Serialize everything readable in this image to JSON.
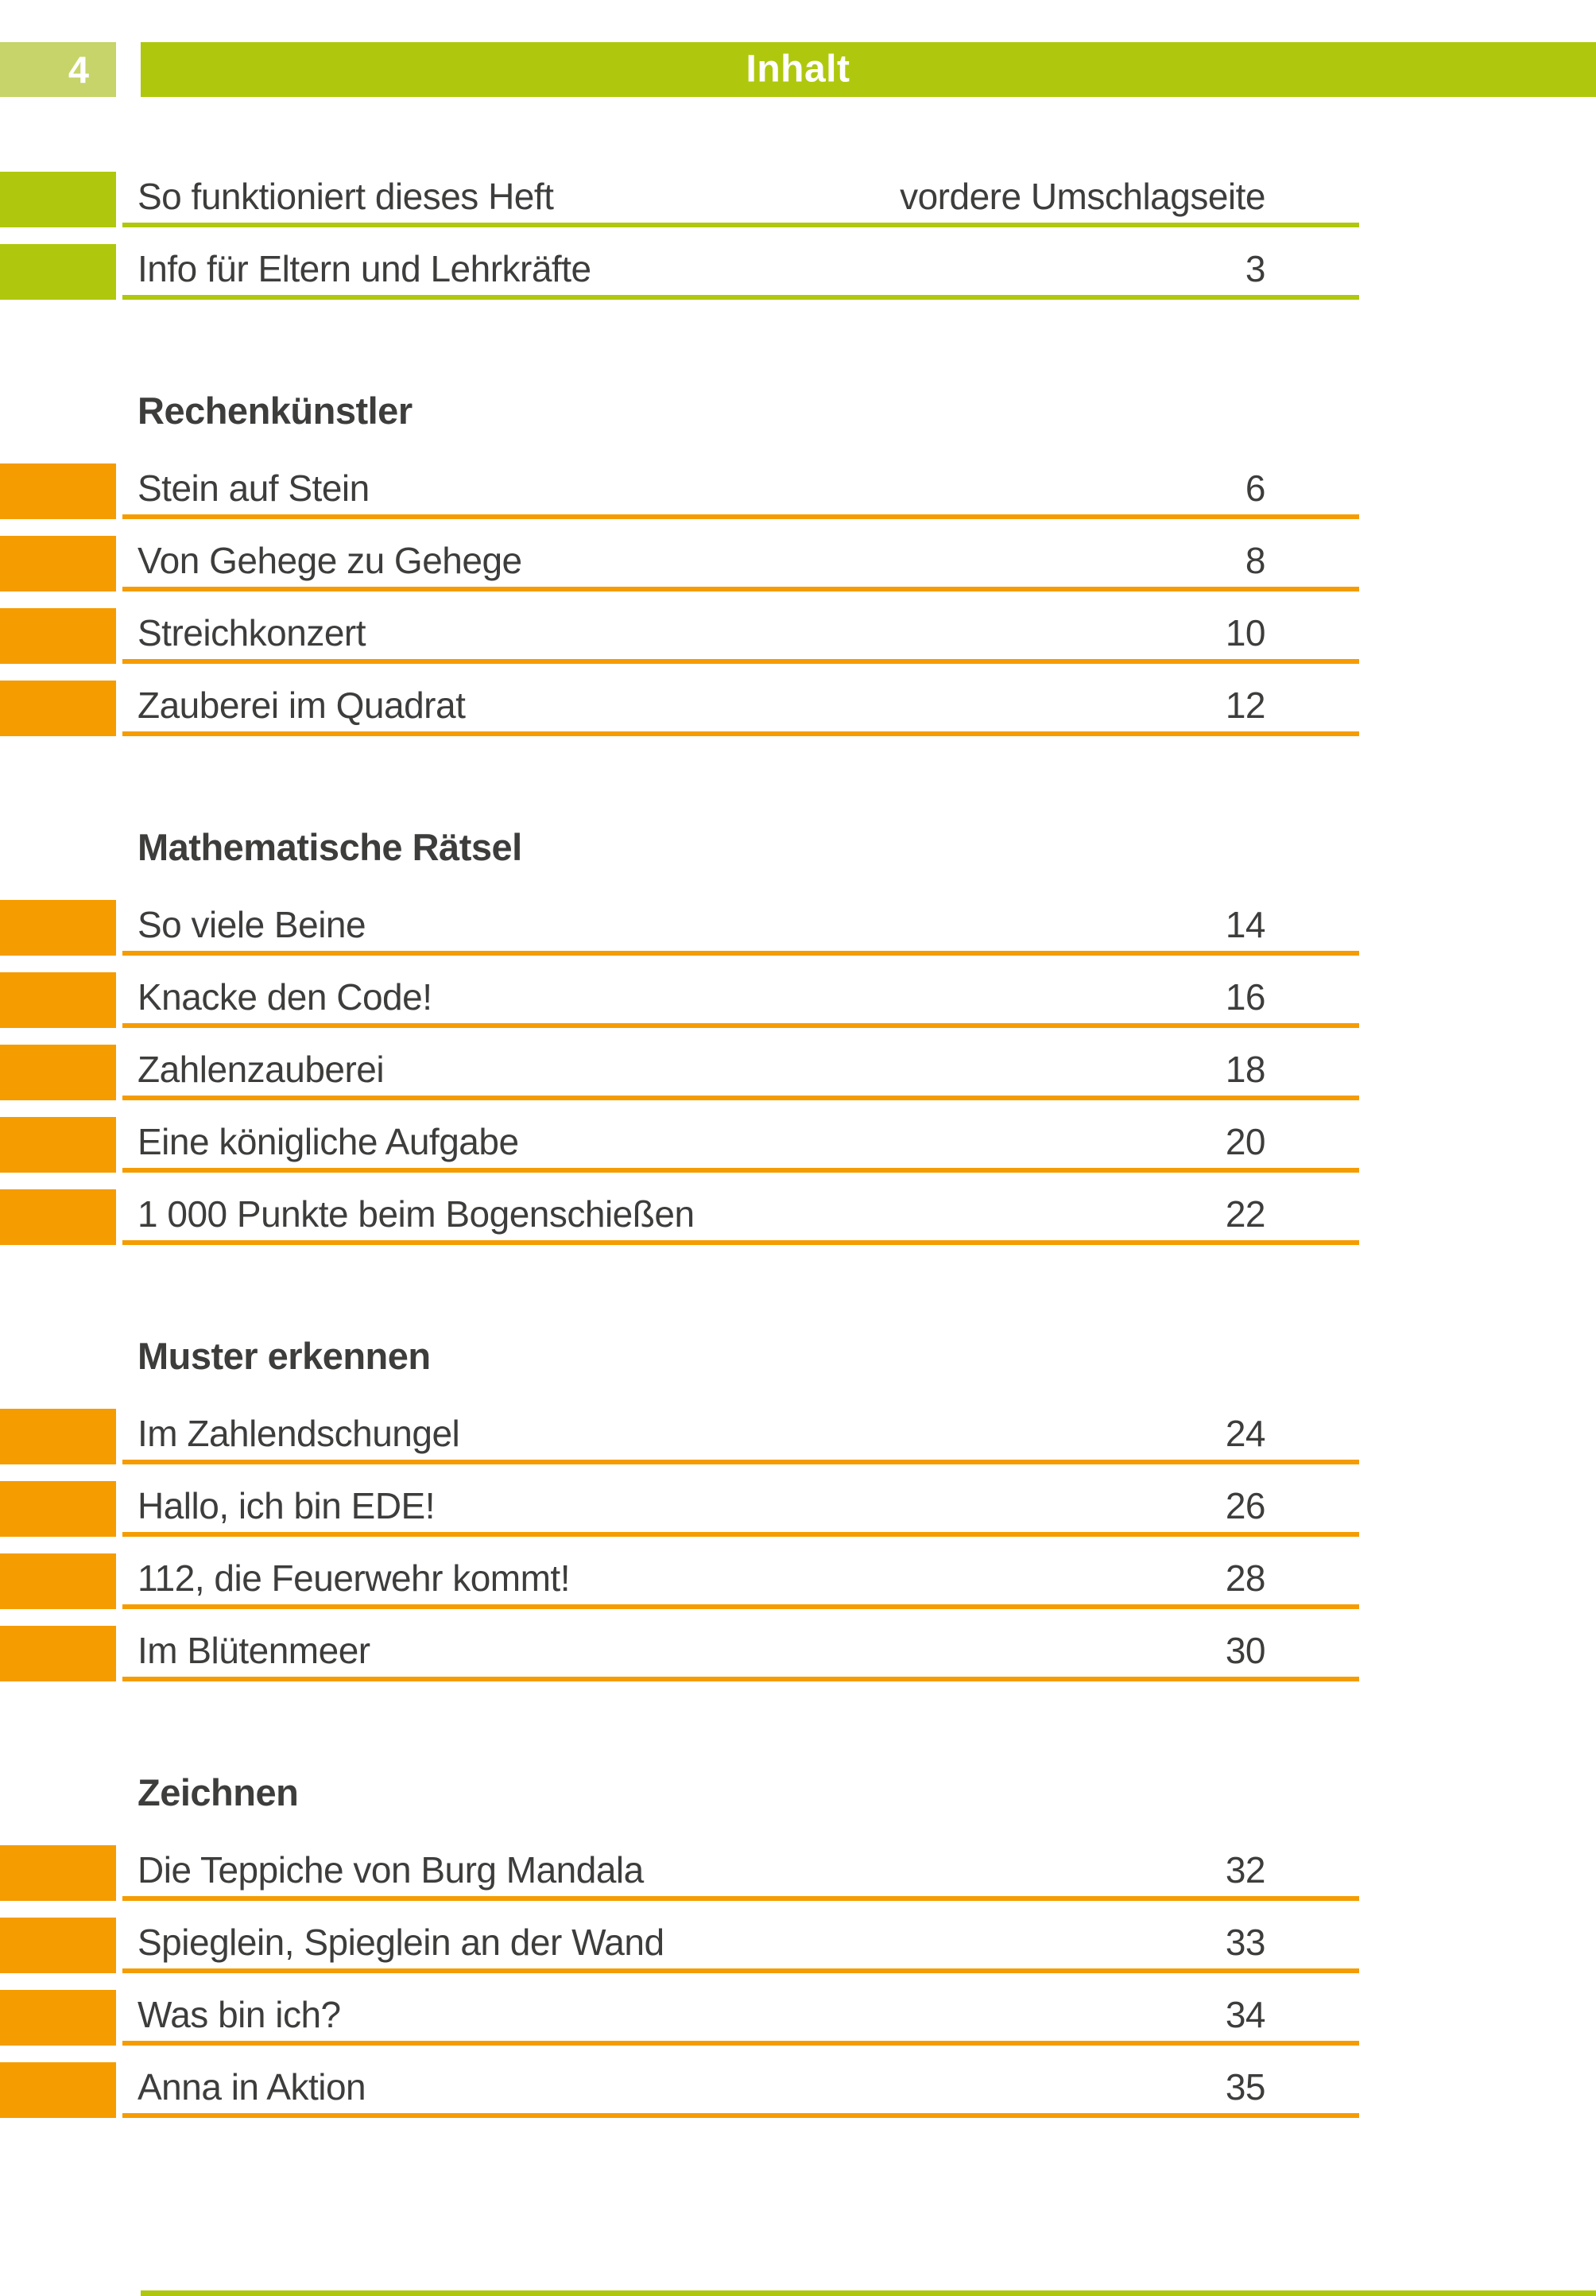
{
  "page": {
    "number": "4",
    "header_title": "Inhalt"
  },
  "colors": {
    "green": "#AFC80E",
    "light_green": "#C6D469",
    "orange": "#F59C00",
    "text": "#3D3D3C"
  },
  "toc": {
    "intro": [
      {
        "label": "So funktioniert dieses Heft",
        "page": "vordere Umschlagseite"
      },
      {
        "label": "Info für Eltern und Lehrkräfte",
        "page": "3"
      }
    ],
    "sections": [
      {
        "title": "Rechenkünstler",
        "rows": [
          {
            "label": "Stein auf Stein",
            "page": "6"
          },
          {
            "label": "Von Gehege zu Gehege",
            "page": "8"
          },
          {
            "label": "Streichkonzert",
            "page": "10"
          },
          {
            "label": "Zauberei im Quadrat",
            "page": "12"
          }
        ]
      },
      {
        "title": "Mathematische Rätsel",
        "rows": [
          {
            "label": "So viele Beine",
            "page": "14"
          },
          {
            "label": "Knacke den Code!",
            "page": "16"
          },
          {
            "label": "Zahlenzauberei",
            "page": "18"
          },
          {
            "label": "Eine königliche Aufgabe",
            "page": "20"
          },
          {
            "label": "1 000 Punkte beim Bogenschießen",
            "page": "22"
          }
        ]
      },
      {
        "title": "Muster erkennen",
        "rows": [
          {
            "label": "Im Zahlendschungel",
            "page": "24"
          },
          {
            "label": "Hallo, ich bin EDE!",
            "page": "26"
          },
          {
            "label": "112, die Feuerwehr kommt!",
            "page": "28"
          },
          {
            "label": "Im Blütenmeer",
            "page": "30"
          }
        ]
      },
      {
        "title": "Zeichnen",
        "rows": [
          {
            "label": "Die Teppiche von Burg Mandala",
            "page": "32"
          },
          {
            "label": "Spieglein, Spieglein an der Wand",
            "page": "33"
          },
          {
            "label": "Was bin ich?",
            "page": "34"
          },
          {
            "label": "Anna in Aktion",
            "page": "35"
          }
        ]
      }
    ]
  }
}
